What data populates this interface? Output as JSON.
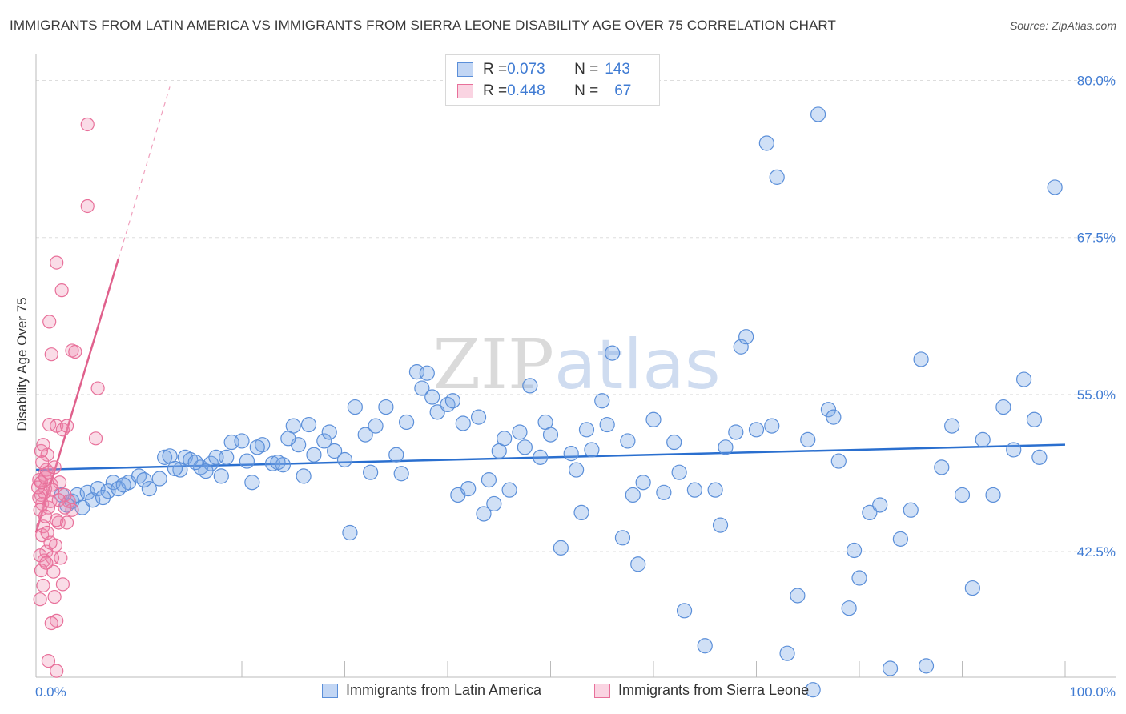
{
  "title": "IMMIGRANTS FROM LATIN AMERICA VS IMMIGRANTS FROM SIERRA LEONE DISABILITY AGE OVER 75 CORRELATION CHART",
  "source": "Source: ZipAtlas.com",
  "watermark": "ZIPatlas",
  "colors": {
    "blue": "#5b8fd9",
    "blue_fill": "rgba(120,165,230,0.35)",
    "blue_line": "#2a6fcf",
    "pink": "#e8709a",
    "pink_fill": "rgba(240,140,175,0.30)",
    "pink_line": "#e0608c",
    "tick": "#3f7bd3",
    "grid": "#dddddd"
  },
  "legend": {
    "rows": [
      {
        "r_label": "R = ",
        "r_value": "0.073",
        "n_label": "N = ",
        "n_value": "143"
      },
      {
        "r_label": "R = ",
        "r_value": "0.448",
        "n_label": "N = ",
        "n_value": "67"
      }
    ]
  },
  "chart_data": {
    "type": "scatter",
    "title": "IMMIGRANTS FROM LATIN AMERICA VS IMMIGRANTS FROM SIERRA LEONE DISABILITY AGE OVER 75 CORRELATION CHART",
    "xlabel": "",
    "ylabel": "Disability Age Over 75",
    "xlim": [
      0,
      100
    ],
    "ylim": [
      32.5,
      81.5
    ],
    "x_tick_labels": [
      "0.0%",
      "100.0%"
    ],
    "y_ticks": [
      42.5,
      55.0,
      67.5,
      80.0
    ],
    "y_tick_labels": [
      "42.5%",
      "55.0%",
      "67.5%",
      "80.0%"
    ],
    "grid": true,
    "legend_position": "top-center",
    "series": [
      {
        "name": "Immigrants from Latin America",
        "color": "#5b8fd9",
        "trend": {
          "x": [
            0,
            100
          ],
          "y": [
            49.0,
            51.0
          ]
        },
        "points": [
          [
            3.0,
            46.2
          ],
          [
            3.5,
            46.5
          ],
          [
            4.0,
            47.0
          ],
          [
            4.5,
            46.0
          ],
          [
            5.0,
            47.2
          ],
          [
            5.5,
            46.6
          ],
          [
            6.0,
            47.5
          ],
          [
            7.0,
            47.3
          ],
          [
            7.5,
            48.0
          ],
          [
            8.0,
            47.5
          ],
          [
            9.0,
            48.0
          ],
          [
            10.0,
            48.5
          ],
          [
            11.0,
            47.5
          ],
          [
            12.0,
            48.3
          ],
          [
            12.5,
            50.0
          ],
          [
            13.0,
            50.1
          ],
          [
            14.0,
            49.0
          ],
          [
            14.5,
            50.0
          ],
          [
            15.0,
            49.8
          ],
          [
            16.0,
            49.2
          ],
          [
            17.0,
            49.5
          ],
          [
            18.0,
            48.5
          ],
          [
            18.5,
            50.0
          ],
          [
            19.0,
            51.2
          ],
          [
            20.0,
            51.3
          ],
          [
            21.0,
            48.0
          ],
          [
            22.0,
            51.0
          ],
          [
            23.0,
            49.5
          ],
          [
            24.0,
            49.4
          ],
          [
            25.0,
            52.5
          ],
          [
            25.5,
            51.0
          ],
          [
            26.0,
            48.5
          ],
          [
            27.0,
            50.2
          ],
          [
            28.0,
            51.3
          ],
          [
            28.5,
            52.0
          ],
          [
            29.0,
            50.5
          ],
          [
            30.0,
            49.8
          ],
          [
            31.0,
            54.0
          ],
          [
            32.0,
            51.8
          ],
          [
            32.5,
            48.8
          ],
          [
            33.0,
            52.5
          ],
          [
            34.0,
            54.0
          ],
          [
            35.0,
            50.2
          ],
          [
            35.5,
            48.7
          ],
          [
            36.0,
            52.8
          ],
          [
            37.0,
            56.8
          ],
          [
            37.5,
            55.5
          ],
          [
            38.0,
            56.7
          ],
          [
            38.5,
            54.8
          ],
          [
            39.0,
            53.6
          ],
          [
            40.0,
            54.2
          ],
          [
            40.5,
            54.5
          ],
          [
            41.0,
            47.0
          ],
          [
            41.5,
            52.7
          ],
          [
            42.0,
            47.5
          ],
          [
            43.0,
            53.2
          ],
          [
            43.5,
            45.5
          ],
          [
            44.0,
            48.2
          ],
          [
            44.5,
            46.3
          ],
          [
            45.0,
            50.5
          ],
          [
            45.5,
            51.5
          ],
          [
            46.0,
            47.4
          ],
          [
            47.0,
            52.0
          ],
          [
            47.5,
            50.8
          ],
          [
            48.0,
            55.7
          ],
          [
            49.0,
            50.0
          ],
          [
            49.5,
            52.8
          ],
          [
            50.0,
            51.8
          ],
          [
            51.0,
            42.8
          ],
          [
            52.0,
            50.3
          ],
          [
            52.5,
            49.0
          ],
          [
            53.0,
            45.6
          ],
          [
            53.5,
            52.2
          ],
          [
            54.0,
            50.6
          ],
          [
            55.0,
            54.5
          ],
          [
            55.5,
            52.6
          ],
          [
            56.0,
            58.3
          ],
          [
            57.0,
            43.6
          ],
          [
            57.5,
            51.3
          ],
          [
            58.0,
            47.0
          ],
          [
            58.5,
            41.5
          ],
          [
            59.0,
            48.0
          ],
          [
            60.0,
            53.0
          ],
          [
            61.0,
            47.2
          ],
          [
            62.0,
            51.2
          ],
          [
            62.5,
            48.8
          ],
          [
            63.0,
            37.8
          ],
          [
            64.0,
            47.4
          ],
          [
            65.0,
            35.0
          ],
          [
            66.0,
            47.4
          ],
          [
            66.5,
            44.6
          ],
          [
            67.0,
            50.8
          ],
          [
            68.0,
            52.0
          ],
          [
            68.5,
            58.8
          ],
          [
            69.0,
            59.6
          ],
          [
            70.0,
            52.2
          ],
          [
            71.0,
            75.0
          ],
          [
            71.5,
            52.5
          ],
          [
            72.0,
            72.3
          ],
          [
            73.0,
            34.4
          ],
          [
            74.0,
            39.0
          ],
          [
            75.0,
            51.4
          ],
          [
            75.5,
            31.5
          ],
          [
            77.0,
            53.8
          ],
          [
            77.5,
            53.2
          ],
          [
            78.0,
            49.7
          ],
          [
            79.0,
            38.0
          ],
          [
            79.5,
            42.6
          ],
          [
            80.0,
            40.4
          ],
          [
            81.0,
            45.6
          ],
          [
            82.0,
            46.2
          ],
          [
            83.0,
            33.2
          ],
          [
            84.0,
            43.5
          ],
          [
            85.0,
            45.8
          ],
          [
            86.0,
            57.8
          ],
          [
            86.5,
            33.4
          ],
          [
            88.0,
            49.2
          ],
          [
            89.0,
            52.5
          ],
          [
            90.0,
            47.0
          ],
          [
            91.0,
            39.6
          ],
          [
            92.0,
            51.4
          ],
          [
            93.0,
            47.0
          ],
          [
            94.0,
            54.0
          ],
          [
            95.0,
            50.6
          ],
          [
            96.0,
            56.2
          ],
          [
            97.0,
            53.0
          ],
          [
            97.5,
            50.0
          ],
          [
            99.0,
            71.5
          ],
          [
            76.0,
            77.3
          ],
          [
            30.5,
            44.0
          ],
          [
            2.5,
            47.0
          ],
          [
            6.5,
            46.8
          ],
          [
            8.5,
            47.8
          ],
          [
            10.5,
            48.2
          ],
          [
            13.5,
            49.1
          ],
          [
            15.5,
            49.6
          ],
          [
            16.5,
            48.9
          ],
          [
            17.5,
            50.0
          ],
          [
            20.5,
            49.7
          ],
          [
            21.5,
            50.8
          ],
          [
            23.5,
            49.6
          ],
          [
            24.5,
            51.5
          ],
          [
            26.5,
            52.6
          ]
        ]
      },
      {
        "name": "Immigrants from Sierra Leone",
        "color": "#e8709a",
        "trend": {
          "x": [
            0,
            8
          ],
          "y": [
            44.0,
            65.8
          ]
        },
        "trend_dashed": {
          "x": [
            8,
            13
          ],
          "y": [
            65.8,
            79.5
          ]
        },
        "points": [
          [
            0.3,
            48.2
          ],
          [
            0.5,
            47.0
          ],
          [
            0.6,
            46.3
          ],
          [
            0.8,
            48.6
          ],
          [
            0.4,
            45.8
          ],
          [
            0.9,
            47.5
          ],
          [
            1.0,
            49.0
          ],
          [
            1.2,
            46.0
          ],
          [
            0.7,
            44.5
          ],
          [
            1.1,
            50.2
          ],
          [
            0.5,
            50.5
          ],
          [
            1.3,
            52.6
          ],
          [
            1.5,
            47.8
          ],
          [
            1.4,
            46.5
          ],
          [
            0.6,
            43.8
          ],
          [
            1.0,
            42.5
          ],
          [
            0.8,
            41.8
          ],
          [
            1.6,
            42.0
          ],
          [
            0.5,
            41.0
          ],
          [
            0.7,
            39.8
          ],
          [
            0.4,
            38.7
          ],
          [
            1.8,
            38.9
          ],
          [
            2.0,
            37.0
          ],
          [
            1.2,
            33.8
          ],
          [
            2.0,
            33.0
          ],
          [
            1.5,
            58.2
          ],
          [
            1.3,
            60.8
          ],
          [
            2.0,
            65.5
          ],
          [
            2.5,
            63.3
          ],
          [
            3.5,
            58.5
          ],
          [
            3.8,
            58.4
          ],
          [
            5.0,
            70.0
          ],
          [
            6.0,
            55.5
          ],
          [
            5.8,
            51.5
          ],
          [
            5.0,
            76.5
          ],
          [
            2.0,
            52.5
          ],
          [
            2.6,
            52.2
          ],
          [
            3.0,
            52.5
          ],
          [
            2.3,
            48.0
          ],
          [
            2.8,
            47.0
          ],
          [
            3.2,
            46.5
          ],
          [
            3.5,
            45.8
          ],
          [
            2.2,
            44.8
          ],
          [
            1.9,
            43.0
          ],
          [
            2.4,
            42.0
          ],
          [
            1.7,
            40.9
          ],
          [
            2.6,
            39.9
          ],
          [
            0.9,
            45.3
          ],
          [
            1.1,
            44.0
          ],
          [
            1.4,
            43.2
          ],
          [
            0.6,
            49.6
          ],
          [
            0.8,
            47.2
          ],
          [
            1.6,
            47.4
          ],
          [
            0.3,
            46.8
          ],
          [
            0.2,
            47.6
          ],
          [
            0.5,
            48.0
          ],
          [
            0.9,
            48.4
          ],
          [
            1.2,
            48.8
          ],
          [
            2.0,
            45.0
          ],
          [
            2.8,
            46.0
          ],
          [
            1.8,
            49.2
          ],
          [
            0.4,
            42.2
          ],
          [
            1.0,
            41.6
          ],
          [
            3.0,
            44.8
          ],
          [
            1.5,
            36.8
          ],
          [
            2.2,
            46.6
          ],
          [
            0.7,
            51.0
          ]
        ]
      }
    ]
  },
  "bottom_legend": [
    "Immigrants from Latin America",
    "Immigrants from Sierra Leone"
  ]
}
